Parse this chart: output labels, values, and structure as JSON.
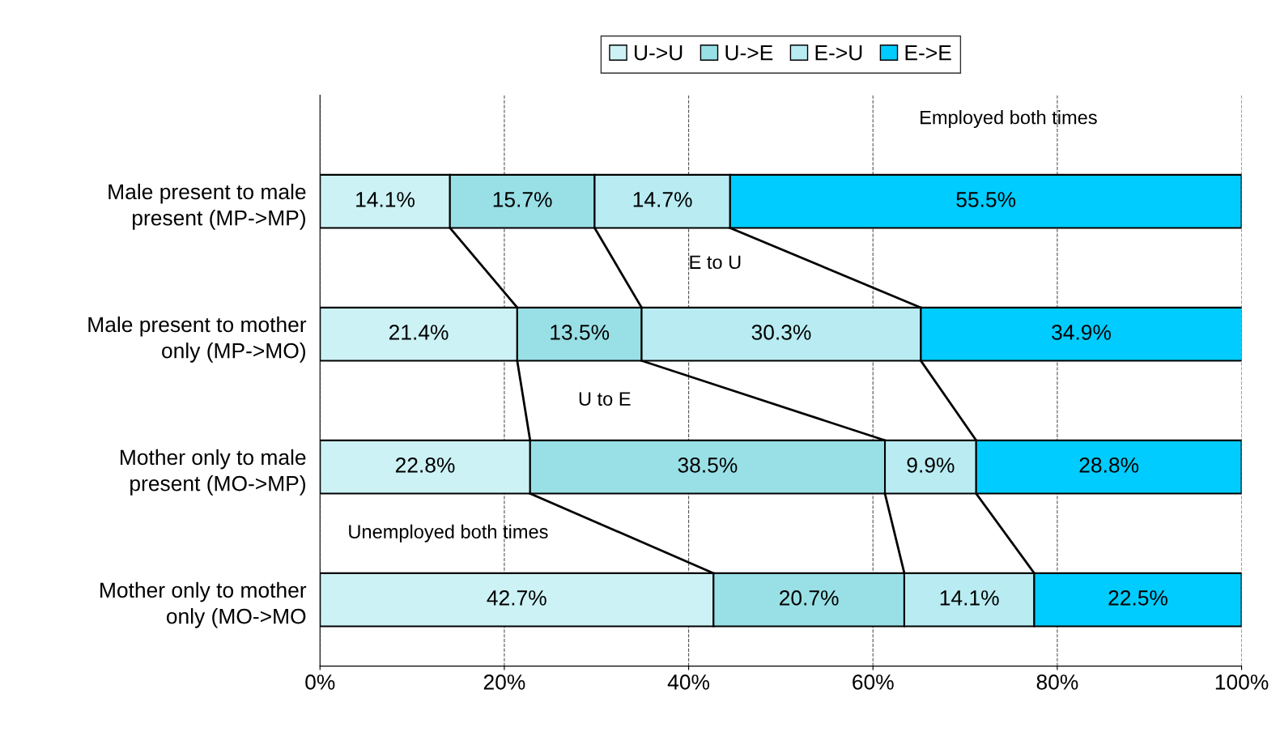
{
  "chart_data": {
    "type": "bar",
    "orientation": "horizontal",
    "stacked": true,
    "categories": [
      "Male present to male\npresent (MP->MP)",
      "Male present to mother\nonly (MP->MO)",
      "Mother only to male\npresent (MO->MP)",
      "Mother only to mother\nonly (MO->MO"
    ],
    "series": [
      {
        "name": "U->U",
        "color": "#ccf2f5",
        "values": [
          14.1,
          21.4,
          22.8,
          42.7
        ],
        "value_labels": [
          "14.1%",
          "21.4%",
          "22.8%",
          "42.7%"
        ]
      },
      {
        "name": "U->E",
        "color": "#99e0e6",
        "values": [
          15.7,
          13.5,
          38.5,
          20.7
        ],
        "value_labels": [
          "15.7%",
          "13.5%",
          "38.5%",
          "20.7%"
        ]
      },
      {
        "name": "E->U",
        "color": "#b8ecf2",
        "values": [
          14.7,
          30.3,
          9.9,
          14.1
        ],
        "value_labels": [
          "14.7%",
          "30.3%",
          "9.9%",
          "14.1%"
        ]
      },
      {
        "name": "E->E",
        "color": "#00ccff",
        "values": [
          55.5,
          34.9,
          28.8,
          22.5
        ],
        "value_labels": [
          "55.5%",
          "34.9%",
          "28.8%",
          "22.5%"
        ]
      }
    ],
    "xlim": [
      0,
      100
    ],
    "xticks": [
      {
        "value": 0,
        "label": "0%"
      },
      {
        "value": 20,
        "label": "20%"
      },
      {
        "value": 40,
        "label": "40%"
      },
      {
        "value": 60,
        "label": "60%"
      },
      {
        "value": 80,
        "label": "80%"
      },
      {
        "value": 100,
        "label": "100%"
      }
    ],
    "grid": "x",
    "legend": "top",
    "annotations": [
      "Employed both times",
      "E to U",
      "U to E",
      "Unemployed both times"
    ]
  }
}
